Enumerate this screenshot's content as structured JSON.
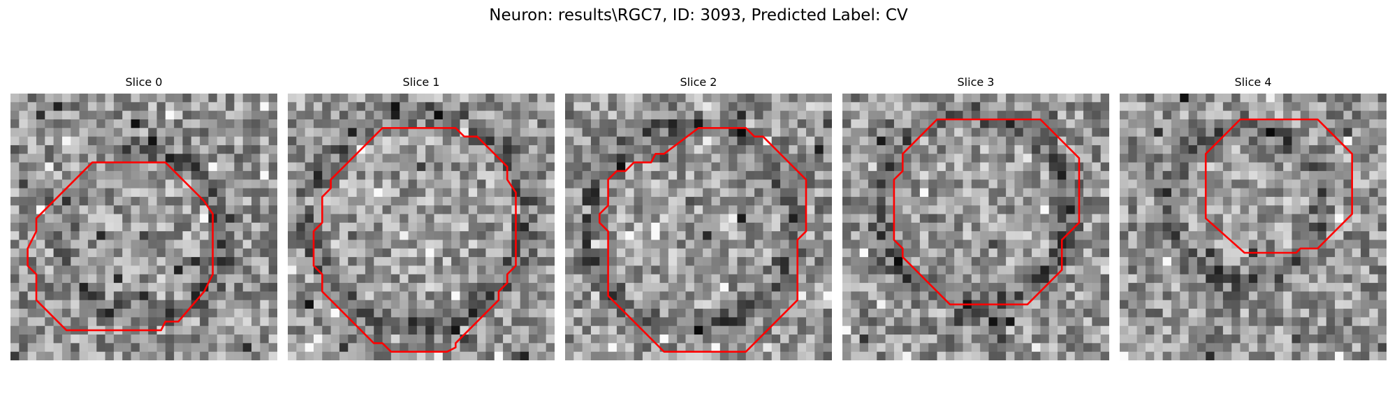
{
  "figure": {
    "title": "Neuron: results\\RGC7, ID: 3093, Predicted Label: CV",
    "contour_color": "#ff0000"
  },
  "slices": [
    {
      "label": "Slice 0"
    },
    {
      "label": "Slice 1"
    },
    {
      "label": "Slice 2"
    },
    {
      "label": "Slice 3"
    },
    {
      "label": "Slice 4"
    }
  ]
}
